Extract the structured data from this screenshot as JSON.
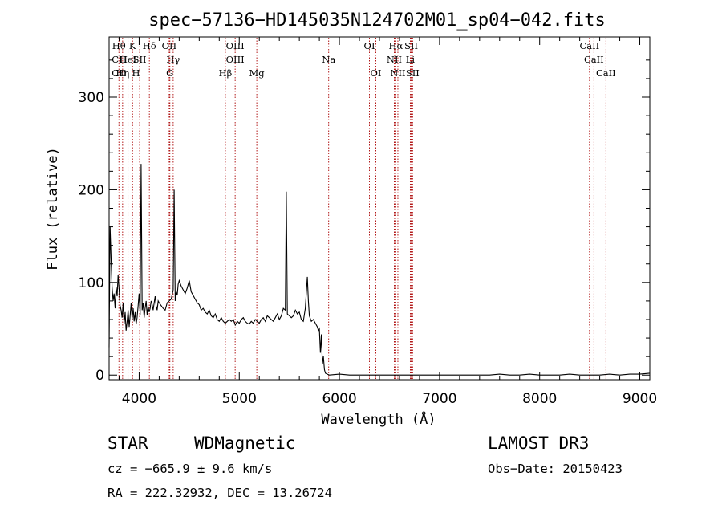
{
  "chart_data": {
    "type": "line",
    "title": "spec−57136−HD145035N124702M01_sp04−042.fits",
    "xlabel": "Wavelength (Å)",
    "ylabel": "Flux (relative)",
    "xlim": [
      3700,
      9100
    ],
    "ylim": [
      -5,
      365
    ],
    "xticks": [
      4000,
      5000,
      6000,
      7000,
      8000,
      9000
    ],
    "yticks": [
      0,
      100,
      200,
      300
    ],
    "line_color": "#000000",
    "marker_color": "#aa0000",
    "spectral_lines": [
      {
        "label": "Hθ",
        "wavelength": 3798,
        "row": 0
      },
      {
        "label": "CII",
        "wavelength": 3798,
        "row": 1
      },
      {
        "label": "CII",
        "wavelength": 3798,
        "row": 2
      },
      {
        "label": "Hη",
        "wavelength": 3835,
        "row": 2
      },
      {
        "label": "HeI",
        "wavelength": 3889,
        "row": 1
      },
      {
        "label": "K",
        "wavelength": 3934,
        "row": 0
      },
      {
        "label": "H",
        "wavelength": 3969,
        "row": 2
      },
      {
        "label": "SII",
        "wavelength": 4005,
        "row": 1
      },
      {
        "label": "Hδ",
        "wavelength": 4102,
        "row": 0
      },
      {
        "label": "OII",
        "wavelength": 4300,
        "row": 0
      },
      {
        "label": "Hγ",
        "wavelength": 4340,
        "row": 1
      },
      {
        "label": "G",
        "wavelength": 4307,
        "row": 2
      },
      {
        "label": "Hβ",
        "wavelength": 4861,
        "row": 2
      },
      {
        "label": "OIII",
        "wavelength": 4959,
        "row": 0
      },
      {
        "label": "OIII",
        "wavelength": 4959,
        "row": 1
      },
      {
        "label": "Mg",
        "wavelength": 5175,
        "row": 2
      },
      {
        "label": "Na",
        "wavelength": 5893,
        "row": 1
      },
      {
        "label": "OI",
        "wavelength": 6300,
        "row": 0
      },
      {
        "label": "OI",
        "wavelength": 6364,
        "row": 2
      },
      {
        "label": "Hα",
        "wavelength": 6563,
        "row": 0
      },
      {
        "label": "NII",
        "wavelength": 6548,
        "row": 1
      },
      {
        "label": "NII",
        "wavelength": 6584,
        "row": 2
      },
      {
        "label": "SII",
        "wavelength": 6717,
        "row": 0
      },
      {
        "label": "Li",
        "wavelength": 6708,
        "row": 1
      },
      {
        "label": "SII",
        "wavelength": 6731,
        "row": 2
      },
      {
        "label": "CaII",
        "wavelength": 8498,
        "row": 0
      },
      {
        "label": "CaII",
        "wavelength": 8542,
        "row": 1
      },
      {
        "label": "CaII",
        "wavelength": 8662,
        "row": 2
      }
    ],
    "series": [
      {
        "x": [
          3700,
          3710,
          3720,
          3730,
          3740,
          3750,
          3760,
          3770,
          3780,
          3790,
          3800,
          3810,
          3820,
          3830,
          3840,
          3850,
          3860,
          3870,
          3880,
          3890,
          3900,
          3910,
          3920,
          3930,
          3940,
          3950,
          3960,
          3970,
          3980,
          3990,
          4000,
          4010,
          4020,
          4030,
          4040,
          4050,
          4060,
          4070,
          4080,
          4090,
          4100,
          4110,
          4120,
          4130,
          4140,
          4150,
          4160,
          4170,
          4180,
          4190,
          4200,
          4220,
          4240,
          4260,
          4280,
          4300,
          4320,
          4340,
          4350,
          4360,
          4370,
          4380,
          4390,
          4400,
          4420,
          4440,
          4460,
          4480,
          4500,
          4520,
          4540,
          4560,
          4580,
          4600,
          4620,
          4640,
          4660,
          4680,
          4700,
          4720,
          4740,
          4760,
          4780,
          4800,
          4820,
          4840,
          4860,
          4880,
          4900,
          4920,
          4940,
          4960,
          4980,
          5000,
          5020,
          5040,
          5060,
          5080,
          5100,
          5120,
          5140,
          5160,
          5180,
          5200,
          5220,
          5240,
          5260,
          5280,
          5300,
          5320,
          5340,
          5360,
          5380,
          5400,
          5420,
          5440,
          5460,
          5470,
          5480,
          5500,
          5520,
          5540,
          5560,
          5580,
          5600,
          5620,
          5640,
          5660,
          5680,
          5690,
          5700,
          5720,
          5740,
          5760,
          5780,
          5790,
          5800,
          5810,
          5820,
          5830,
          5840,
          5850,
          5860,
          5880,
          5900,
          6000,
          6100,
          6200,
          6300,
          6400,
          6500,
          6600,
          6700,
          6800,
          6900,
          7000,
          7100,
          7200,
          7300,
          7400,
          7500,
          7600,
          7700,
          7800,
          7900,
          8000,
          8100,
          8200,
          8300,
          8400,
          8500,
          8600,
          8700,
          8800,
          8900,
          9000,
          9100
        ],
        "y": [
          30,
          160,
          125,
          95,
          80,
          88,
          72,
          95,
          85,
          108,
          92,
          75,
          70,
          62,
          78,
          55,
          68,
          48,
          58,
          70,
          52,
          64,
          78,
          60,
          72,
          58,
          68,
          55,
          62,
          75,
          88,
          65,
          228,
          70,
          78,
          62,
          72,
          80,
          65,
          74,
          68,
          72,
          80,
          76,
          70,
          78,
          85,
          74,
          70,
          80,
          78,
          75,
          72,
          70,
          78,
          80,
          82,
          92,
          200,
          80,
          90,
          86,
          98,
          102,
          96,
          92,
          88,
          94,
          102,
          90,
          86,
          82,
          78,
          76,
          70,
          72,
          68,
          66,
          70,
          64,
          62,
          66,
          60,
          58,
          62,
          58,
          56,
          58,
          60,
          58,
          60,
          54,
          58,
          56,
          60,
          62,
          58,
          56,
          55,
          58,
          56,
          60,
          58,
          56,
          60,
          62,
          58,
          64,
          62,
          60,
          58,
          62,
          66,
          60,
          64,
          72,
          70,
          198,
          66,
          64,
          62,
          64,
          70,
          66,
          68,
          60,
          58,
          72,
          106,
          80,
          64,
          58,
          60,
          56,
          52,
          48,
          50,
          24,
          44,
          12,
          20,
          6,
          2,
          1,
          0,
          1,
          0,
          0,
          0,
          0,
          0,
          0,
          0,
          0,
          0,
          0,
          0,
          0,
          0,
          0,
          0,
          1,
          0,
          0,
          1,
          0,
          0,
          0,
          1,
          0,
          0,
          0,
          1,
          0,
          1,
          1,
          2
        ]
      }
    ]
  },
  "info": {
    "object_class": "STAR",
    "subclass": "WDMagnetic",
    "survey": "LAMOST DR3",
    "redshift": "cz = −665.9 ± 9.6 km/s",
    "obs_date": "Obs−Date: 20150423",
    "coordinates": "RA = 222.32932, DEC =  13.26724"
  }
}
